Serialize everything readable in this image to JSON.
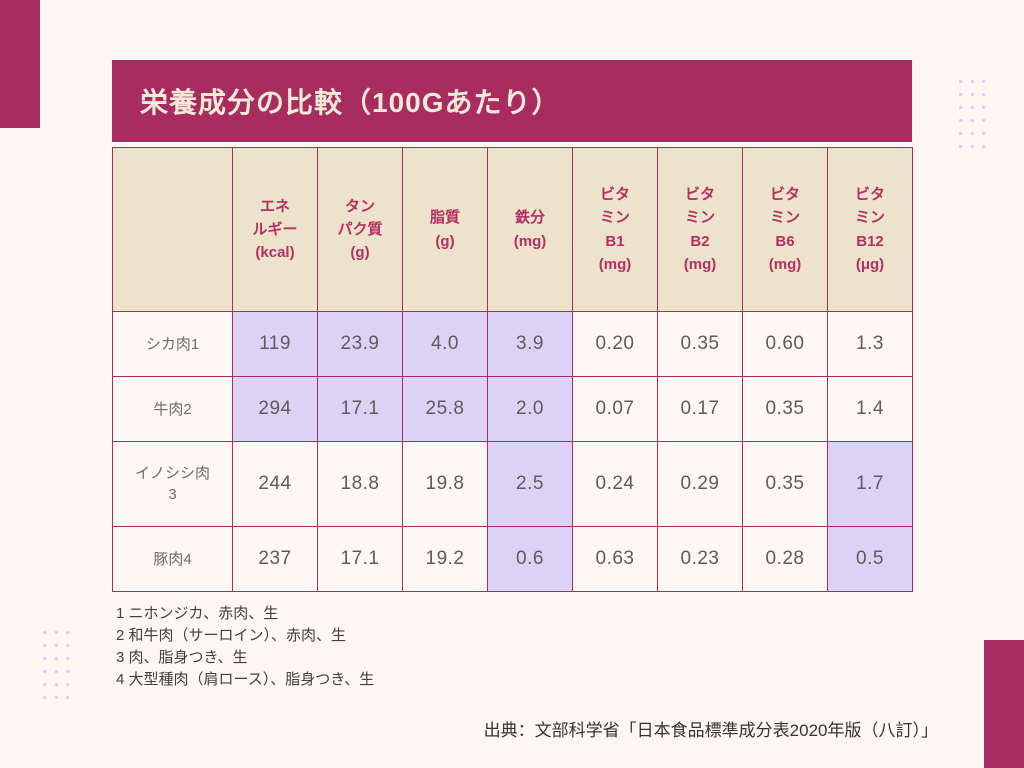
{
  "page": {
    "title": "栄養成分の比較（100Gあたり）",
    "source": "出典：文部科学省「日本食品標準成分表2020年版（八訂）」"
  },
  "colors": {
    "magenta": "#A82C5F",
    "cream": "#FDF7F4",
    "beige": "#EDE2CB",
    "lavender": "#DBD3F6",
    "cell_bg": "#FDF8F4",
    "header_text": "#B52F63",
    "title_text": "#F3E9D7",
    "dot": "#D9CFEF"
  },
  "table": {
    "columns": [
      "",
      "エネ\nルギー\n(kcal)",
      "タン\nパク質\n(g)",
      "脂質\n(g)",
      "鉄分\n(mg)",
      "ビタ\nミン\nB1\n(mg)",
      "ビタ\nミン\nB2\n(mg)",
      "ビタ\nミン\nB6\n(mg)",
      "ビタ\nミン\nB12\n(μg)"
    ],
    "rows": [
      {
        "label": "シカ肉1",
        "values": [
          "119",
          "23.9",
          "4.0",
          "3.9",
          "0.20",
          "0.35",
          "0.60",
          "1.3"
        ],
        "highlight": [
          0,
          1,
          2,
          3
        ]
      },
      {
        "label": "牛肉2",
        "values": [
          "294",
          "17.1",
          "25.8",
          "2.0",
          "0.07",
          "0.17",
          "0.35",
          "1.4"
        ],
        "highlight": [
          0,
          1,
          2,
          3
        ]
      },
      {
        "label": "イノシシ肉\n3",
        "values": [
          "244",
          "18.8",
          "19.8",
          "2.5",
          "0.24",
          "0.29",
          "0.35",
          "1.7"
        ],
        "highlight": [
          3,
          7
        ]
      },
      {
        "label": "豚肉4",
        "values": [
          "237",
          "17.1",
          "19.2",
          "0.6",
          "0.63",
          "0.23",
          "0.28",
          "0.5"
        ],
        "highlight": [
          3,
          7
        ]
      }
    ]
  },
  "footnotes": [
    "1 ニホンジカ、赤肉、生",
    "2 和牛肉（サーロイン）、赤肉、生",
    "3 肉、脂身つき、生",
    "4 大型種肉（肩ロース）、脂身つき、生"
  ]
}
